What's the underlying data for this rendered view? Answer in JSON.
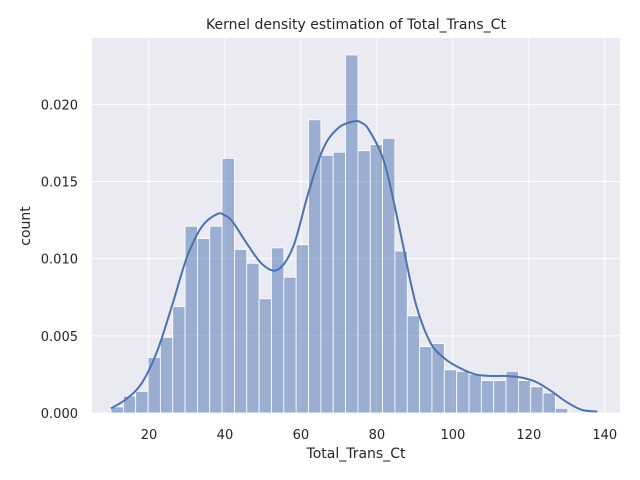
{
  "chart_data": {
    "type": "bar",
    "title": "Kernel density estimation of Total_Trans_Ct",
    "xlabel": "Total_Trans_Ct",
    "ylabel": "count",
    "xlim": [
      5,
      144
    ],
    "ylim": [
      0,
      0.0243
    ],
    "xticks": [
      20,
      40,
      60,
      80,
      100,
      120,
      140
    ],
    "yticks": [
      0.0,
      0.005,
      0.01,
      0.015,
      0.02
    ],
    "ytick_labels": [
      "0.000",
      "0.005",
      "0.010",
      "0.015",
      "0.020"
    ],
    "grid": true,
    "bin_edges": [
      10,
      13.25,
      16.5,
      19.75,
      23,
      26.25,
      29.5,
      32.75,
      36,
      39.25,
      42.5,
      45.75,
      49,
      52.25,
      55.5,
      58.75,
      62,
      65.25,
      68.5,
      71.75,
      75,
      78.25,
      81.5,
      84.75,
      88,
      91.25,
      94.5,
      97.75,
      101,
      104.25,
      107.5,
      110.75,
      114,
      117.25,
      120.5,
      123.75,
      127,
      130.25,
      133.5,
      136.75,
      140
    ],
    "values": [
      0.0004,
      0.0011,
      0.0014,
      0.0036,
      0.0049,
      0.0069,
      0.0121,
      0.0113,
      0.0121,
      0.0165,
      0.0106,
      0.0097,
      0.0074,
      0.0107,
      0.0088,
      0.0109,
      0.019,
      0.0167,
      0.0169,
      0.0232,
      0.017,
      0.0174,
      0.0178,
      0.0105,
      0.0063,
      0.0043,
      0.0045,
      0.0028,
      0.0027,
      0.0025,
      0.0021,
      0.0021,
      0.0027,
      0.0021,
      0.0017,
      0.0013,
      0.0003,
      0,
      0,
      0
    ],
    "kde": {
      "x": [
        10,
        14,
        18,
        22,
        26,
        30,
        34,
        38,
        40,
        42,
        46,
        50,
        54,
        58,
        62,
        66,
        70,
        74,
        76,
        78,
        82,
        86,
        90,
        94,
        98,
        102,
        106,
        110,
        114,
        118,
        122,
        126,
        130,
        134,
        138
      ],
      "y": [
        0.0003,
        0.0009,
        0.0019,
        0.0039,
        0.0069,
        0.0101,
        0.0121,
        0.0129,
        0.0128,
        0.0124,
        0.0109,
        0.0096,
        0.0093,
        0.0108,
        0.0143,
        0.0172,
        0.0185,
        0.0189,
        0.0188,
        0.0183,
        0.0162,
        0.0119,
        0.0073,
        0.0046,
        0.0035,
        0.0029,
        0.0025,
        0.0024,
        0.0024,
        0.0023,
        0.002,
        0.0014,
        0.0007,
        0.0002,
        0.0001
      ]
    }
  },
  "colors": {
    "background": "#eaeaf2",
    "bar": "#4c72b0",
    "kde_line": "#4c72b0",
    "grid": "#ffffff"
  }
}
